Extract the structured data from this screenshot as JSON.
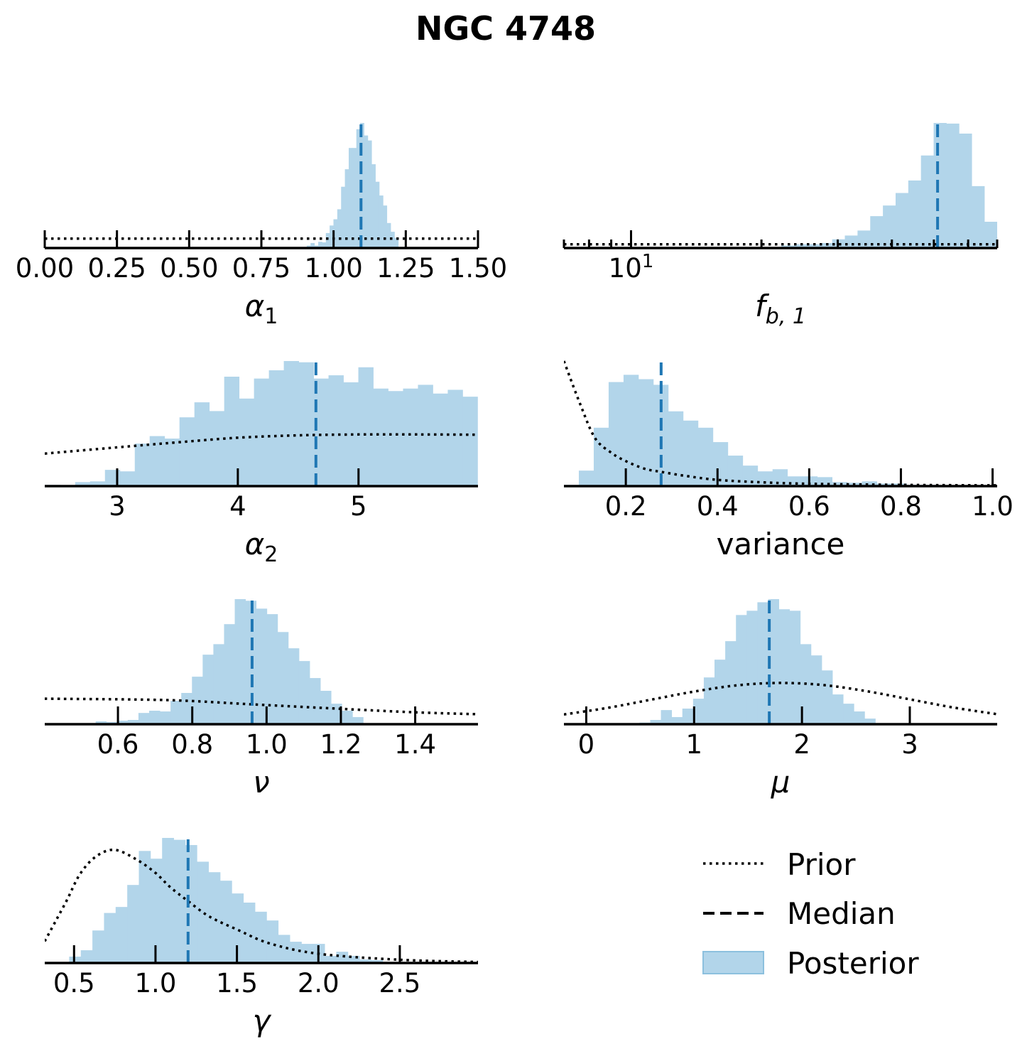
{
  "title": "NGC 4748",
  "colors": {
    "posterior_fill": "#b2d5ea",
    "posterior_edge": "#8cc0de",
    "median": "#1f77b4",
    "prior": "#000000"
  },
  "legend": {
    "position": "bottom-right",
    "items": [
      {
        "label": "Prior",
        "style": "dotted"
      },
      {
        "label": "Median",
        "style": "dashed"
      },
      {
        "label": "Posterior",
        "style": "patch"
      }
    ]
  },
  "chart_data": [
    {
      "type": "histogram",
      "param": "alpha_1",
      "label": {
        "main": "α",
        "sub": "1",
        "math": true
      },
      "xscale": "linear",
      "xlim": [
        0,
        1.5
      ],
      "ylim": [
        0,
        1
      ],
      "ticks": [
        0,
        0.25,
        0.5,
        0.75,
        1.0,
        1.25,
        1.5
      ],
      "tick_labels": [
        "0.00",
        "0.25",
        "0.50",
        "0.75",
        "1.00",
        "1.25",
        "1.50"
      ],
      "median": 1.095,
      "hist": {
        "bin_start": 0.894,
        "bin_width": 0.0132,
        "heights": [
          0.005,
          0.02,
          0.04,
          0.02,
          0.05,
          0.045,
          0.12,
          0.18,
          0.23,
          0.31,
          0.49,
          0.63,
          0.8,
          0.8,
          0.95,
          1.0,
          0.9,
          0.86,
          0.67,
          0.53,
          0.42,
          0.34,
          0.2,
          0.13,
          0.08
        ]
      },
      "prior": {
        "x": [
          0,
          1.5
        ],
        "y": [
          0.075,
          0.075
        ]
      }
    },
    {
      "type": "histogram",
      "param": "f_b1",
      "label": {
        "main": "f",
        "sub": "b, 1",
        "math": true
      },
      "xscale": "log",
      "xlim": [
        7,
        70
      ],
      "ylim": [
        0,
        1
      ],
      "ticks": [
        10
      ],
      "tick_labels": [
        {
          "base": "10",
          "exp": "1"
        }
      ],
      "minor_ticks": [
        7,
        8,
        9,
        20,
        30,
        40,
        50,
        60,
        70
      ],
      "median": 51,
      "hist": {
        "bin_start_log10": 1.23,
        "bin_width_log10": 0.02928,
        "heights": [
          0.004,
          0.004,
          0.004,
          0.006,
          0.02,
          0.03,
          0.03,
          0.04,
          0.07,
          0.1,
          0.14,
          0.255,
          0.34,
          0.44,
          0.54,
          0.74,
          1.0,
          0.995,
          0.915,
          0.495,
          0.21
        ]
      },
      "prior": {
        "x": [
          7,
          70
        ],
        "y": [
          0.03,
          0.03
        ]
      }
    },
    {
      "type": "histogram",
      "param": "alpha_2",
      "label": {
        "main": "α",
        "sub": "2",
        "math": true
      },
      "xscale": "linear",
      "xlim": [
        2.4,
        5.99
      ],
      "ylim": [
        0,
        1
      ],
      "ticks": [
        3,
        4,
        5
      ],
      "tick_labels": [
        "3",
        "4",
        "5"
      ],
      "median": 4.647,
      "hist": {
        "bin_start": 2.405,
        "bin_width": 0.1235,
        "heights": [
          0.01,
          0.004,
          0.032,
          0.038,
          0.13,
          0.118,
          0.34,
          0.4,
          0.38,
          0.55,
          0.67,
          0.6,
          0.875,
          0.7,
          0.86,
          0.926,
          1.0,
          0.99,
          0.86,
          0.886,
          0.83,
          0.95,
          0.78,
          0.76,
          0.78,
          0.81,
          0.74,
          0.77,
          0.715
        ]
      },
      "prior": {
        "x": [
          2.4,
          3.0,
          3.5,
          4.0,
          4.5,
          5.0,
          5.5,
          5.99
        ],
        "y": [
          0.26,
          0.31,
          0.35,
          0.387,
          0.406,
          0.413,
          0.413,
          0.411
        ]
      }
    },
    {
      "type": "histogram",
      "param": "variance",
      "label": {
        "main": "variance",
        "sub": "",
        "math": false
      },
      "xscale": "linear",
      "xlim": [
        0.065,
        1.01
      ],
      "ylim": [
        0,
        1
      ],
      "ticks": [
        0.2,
        0.4,
        0.6,
        0.8,
        1.0
      ],
      "tick_labels": [
        "0.2",
        "0.4",
        "0.6",
        "0.8",
        "1.0"
      ],
      "median": 0.277,
      "hist": {
        "bin_start": 0.065,
        "bin_width": 0.0325,
        "heights": [
          0.01,
          0.124,
          0.467,
          0.832,
          0.89,
          0.855,
          0.81,
          0.598,
          0.524,
          0.467,
          0.352,
          0.244,
          0.164,
          0.118,
          0.135,
          0.078,
          0.078,
          0.072,
          0.032,
          0.027,
          0.038,
          0.021,
          0.021,
          0.01,
          0.01,
          0.008,
          0.008,
          0.006,
          0.004
        ]
      },
      "prior": {
        "x": [
          0.065,
          0.1,
          0.133,
          0.17,
          0.2,
          0.24,
          0.277,
          0.33,
          0.4,
          0.5,
          0.6,
          0.8,
          1.01
        ],
        "y": [
          1.0,
          0.66,
          0.383,
          0.263,
          0.2,
          0.14,
          0.114,
          0.082,
          0.05,
          0.03,
          0.019,
          0.01,
          0.006
        ]
      }
    },
    {
      "type": "histogram",
      "param": "nu",
      "label": {
        "main": "ν",
        "sub": "",
        "math": true
      },
      "xscale": "linear",
      "xlim": [
        0.403,
        1.569
      ],
      "ylim": [
        0,
        1
      ],
      "ticks": [
        0.6,
        0.8,
        1.0,
        1.2,
        1.4
      ],
      "tick_labels": [
        "0.6",
        "0.8",
        "1.0",
        "1.2",
        "1.4"
      ],
      "median": 0.961,
      "hist": {
        "bin_start": 0.54,
        "bin_width": 0.0288,
        "heights": [
          0.023,
          0.017,
          0.028,
          0.034,
          0.09,
          0.108,
          0.102,
          0.187,
          0.25,
          0.38,
          0.556,
          0.64,
          0.8,
          1.0,
          0.987,
          0.924,
          0.88,
          0.737,
          0.607,
          0.505,
          0.369,
          0.267,
          0.164,
          0.108,
          0.057
        ]
      },
      "prior": {
        "x": [
          0.403,
          0.73,
          0.96,
          1.2,
          1.4,
          1.569
        ],
        "y": [
          0.204,
          0.193,
          0.159,
          0.123,
          0.095,
          0.08
        ]
      }
    },
    {
      "type": "histogram",
      "param": "mu",
      "label": {
        "main": "μ",
        "sub": "",
        "math": true
      },
      "xscale": "linear",
      "xlim": [
        -0.207,
        3.81
      ],
      "ylim": [
        0,
        1
      ],
      "ticks": [
        0,
        1,
        2,
        3
      ],
      "tick_labels": [
        "0",
        "1",
        "2",
        "3"
      ],
      "median": 1.697,
      "hist": {
        "bin_start": 0.394,
        "bin_width": 0.0994,
        "heights": [
          0.008,
          0.013,
          0.034,
          0.113,
          0.057,
          0.125,
          0.204,
          0.374,
          0.516,
          0.664,
          0.873,
          0.907,
          0.975,
          1.0,
          0.919,
          0.907,
          0.64,
          0.55,
          0.43,
          0.238,
          0.164,
          0.102,
          0.045
        ]
      },
      "prior": {
        "x": [
          -0.207,
          0.2,
          0.6,
          1.0,
          1.4,
          1.8,
          2.2,
          2.6,
          3.0,
          3.4,
          3.81
        ],
        "y": [
          0.078,
          0.131,
          0.196,
          0.261,
          0.311,
          0.33,
          0.313,
          0.264,
          0.199,
          0.134,
          0.08
        ]
      }
    },
    {
      "type": "histogram",
      "param": "gamma",
      "label": {
        "main": "γ",
        "sub": "",
        "math": true
      },
      "xscale": "linear",
      "xlim": [
        0.32,
        2.98
      ],
      "ylim": [
        0,
        1
      ],
      "ticks": [
        0.5,
        1.0,
        1.5,
        2.0,
        2.5
      ],
      "tick_labels": [
        "0.5",
        "1.0",
        "1.5",
        "2.0",
        "2.5"
      ],
      "median": 1.2,
      "hist": {
        "bin_start": 0.47,
        "bin_width": 0.0713,
        "heights": [
          0.051,
          0.102,
          0.26,
          0.4,
          0.448,
          0.624,
          0.896,
          0.834,
          1.0,
          0.985,
          0.943,
          0.81,
          0.726,
          0.658,
          0.556,
          0.483,
          0.41,
          0.34,
          0.225,
          0.17,
          0.153,
          0.153,
          0.057,
          0.09,
          0.057,
          0.028,
          0.023
        ]
      },
      "prior": {
        "x": [
          0.32,
          0.387,
          0.457,
          0.536,
          0.633,
          0.747,
          0.88,
          1.0,
          1.09,
          1.2,
          1.33,
          1.5,
          1.7,
          2.0,
          2.5,
          2.98
        ],
        "y": [
          0.174,
          0.335,
          0.505,
          0.71,
          0.85,
          0.905,
          0.83,
          0.72,
          0.607,
          0.495,
          0.372,
          0.268,
          0.157,
          0.074,
          0.026,
          0.008
        ]
      }
    }
  ]
}
